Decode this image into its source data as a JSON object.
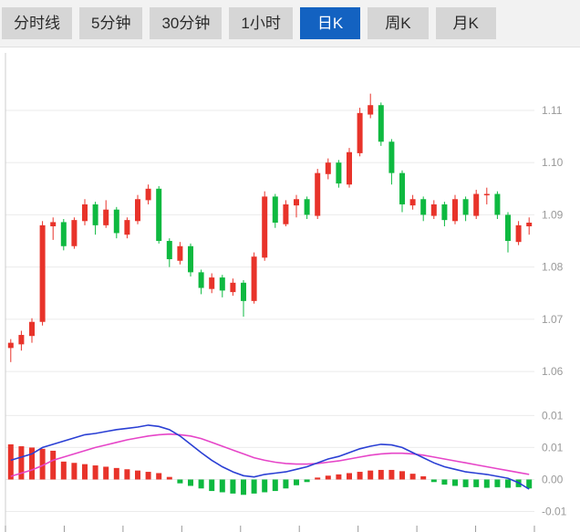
{
  "tabs": [
    {
      "label": "分时线",
      "active": false
    },
    {
      "label": "5分钟",
      "active": false
    },
    {
      "label": "30分钟",
      "active": false
    },
    {
      "label": "1小时",
      "active": false
    },
    {
      "label": "日K",
      "active": true
    },
    {
      "label": "周K",
      "active": false
    },
    {
      "label": "月K",
      "active": false
    }
  ],
  "active_tab_index": 4,
  "chart_data": {
    "type": "candlestick",
    "panes": [
      "price",
      "macd"
    ],
    "legend_position": "none",
    "grid": true,
    "colors": {
      "up": "#e8332a",
      "down": "#0eb940",
      "dif_line": "#2a3fd4",
      "dea_line": "#e645c8",
      "grid": "#ebebeb",
      "axis_line": "#cccccc",
      "axis_text": "#999999",
      "active_tab": "#1362c1"
    },
    "price": {
      "ylim": [
        1.056,
        1.121
      ],
      "yticks": [
        1.06,
        1.07,
        1.08,
        1.09,
        1.1,
        1.11
      ],
      "candles": [
        [
          1.0645,
          1.0662,
          1.0618,
          1.0655
        ],
        [
          1.0652,
          1.0678,
          1.064,
          1.067
        ],
        [
          1.0668,
          1.0702,
          1.0655,
          1.0695
        ],
        [
          1.0695,
          1.0888,
          1.0688,
          1.088
        ],
        [
          1.0878,
          1.0895,
          1.0852,
          1.0886
        ],
        [
          1.0886,
          1.0892,
          1.0832,
          1.084
        ],
        [
          1.084,
          1.0895,
          1.0835,
          1.089
        ],
        [
          1.0888,
          1.093,
          1.088,
          1.092
        ],
        [
          1.092,
          1.0925,
          1.0862,
          1.088
        ],
        [
          1.088,
          1.0928,
          1.0875,
          1.091
        ],
        [
          1.091,
          1.0915,
          1.0855,
          1.0865
        ],
        [
          1.0862,
          1.0895,
          1.0855,
          1.089
        ],
        [
          1.0888,
          1.0938,
          1.0882,
          1.093
        ],
        [
          1.0928,
          1.0958,
          1.092,
          1.095
        ],
        [
          1.095,
          1.0955,
          1.0845,
          1.085
        ],
        [
          1.085,
          1.0855,
          1.08,
          1.0815
        ],
        [
          1.0812,
          1.0848,
          1.0805,
          1.084
        ],
        [
          1.084,
          1.0845,
          1.0782,
          1.079
        ],
        [
          1.079,
          1.0795,
          1.0748,
          1.076
        ],
        [
          1.0758,
          1.0788,
          1.075,
          1.078
        ],
        [
          1.078,
          1.0785,
          1.0742,
          1.0755
        ],
        [
          1.0752,
          1.0778,
          1.0745,
          1.077
        ],
        [
          1.077,
          1.0775,
          1.0705,
          1.0735
        ],
        [
          1.0735,
          1.0828,
          1.073,
          1.082
        ],
        [
          1.0818,
          1.0945,
          1.0812,
          1.0935
        ],
        [
          1.0935,
          1.094,
          1.0875,
          1.0885
        ],
        [
          1.0882,
          1.0928,
          1.0878,
          1.092
        ],
        [
          1.0918,
          1.0938,
          1.0895,
          1.093
        ],
        [
          1.093,
          1.0935,
          1.0892,
          1.09
        ],
        [
          1.0898,
          1.0988,
          1.0892,
          1.098
        ],
        [
          1.0978,
          1.1008,
          1.0968,
          1.1
        ],
        [
          1.1,
          1.1005,
          1.0952,
          1.096
        ],
        [
          1.0958,
          1.1028,
          1.0952,
          1.102
        ],
        [
          1.1018,
          1.1105,
          1.1012,
          1.1095
        ],
        [
          1.1092,
          1.1132,
          1.1085,
          1.111
        ],
        [
          1.111,
          1.1115,
          1.1032,
          1.104
        ],
        [
          1.104,
          1.1045,
          1.0958,
          1.098
        ],
        [
          1.098,
          1.0985,
          1.0905,
          1.092
        ],
        [
          1.0918,
          1.0938,
          1.091,
          1.093
        ],
        [
          1.093,
          1.0935,
          1.0888,
          1.09
        ],
        [
          1.0898,
          1.0928,
          1.0892,
          1.092
        ],
        [
          1.092,
          1.0925,
          1.0878,
          1.089
        ],
        [
          1.0888,
          1.0938,
          1.0882,
          1.093
        ],
        [
          1.093,
          1.0935,
          1.0888,
          1.09
        ],
        [
          1.0898,
          1.0948,
          1.0892,
          1.094
        ],
        [
          1.0938,
          1.0952,
          1.092,
          1.094
        ],
        [
          1.094,
          1.0945,
          1.0892,
          1.09
        ],
        [
          1.09,
          1.0905,
          1.0828,
          1.085
        ],
        [
          1.0848,
          1.0888,
          1.0842,
          1.088
        ],
        [
          1.0878,
          1.0895,
          1.0862,
          1.0885
        ]
      ]
    },
    "macd": {
      "ylim": [
        -0.0075,
        0.0122
      ],
      "yticks": [
        {
          "v": 0.01,
          "label": "0.01"
        },
        {
          "v": 0.005,
          "label": "0.01"
        },
        {
          "v": 0.0,
          "label": "0.00"
        },
        {
          "v": -0.005,
          "label": "-0.01"
        }
      ],
      "hist": [
        0.0055,
        0.0052,
        0.005,
        0.0048,
        0.0045,
        0.0028,
        0.0026,
        0.0024,
        0.0022,
        0.002,
        0.0018,
        0.0016,
        0.0014,
        0.0012,
        0.001,
        0.0004,
        -0.0006,
        -0.001,
        -0.0014,
        -0.0018,
        -0.002,
        -0.0022,
        -0.0024,
        -0.0022,
        -0.002,
        -0.0018,
        -0.0014,
        -0.0009,
        -0.0004,
        0.0003,
        0.0006,
        0.0008,
        0.001,
        0.0012,
        0.0014,
        0.0015,
        0.0015,
        0.0013,
        0.0009,
        0.0005,
        -0.0004,
        -0.0008,
        -0.001,
        -0.0012,
        -0.0012,
        -0.0013,
        -0.0012,
        -0.0013,
        -0.0012,
        -0.0014
      ],
      "dif": [
        0.003,
        0.0035,
        0.004,
        0.005,
        0.0055,
        0.006,
        0.0065,
        0.007,
        0.0072,
        0.0075,
        0.0078,
        0.008,
        0.0082,
        0.0085,
        0.0083,
        0.0078,
        0.0068,
        0.0055,
        0.0042,
        0.003,
        0.002,
        0.0012,
        0.0006,
        0.0004,
        0.0008,
        0.001,
        0.0012,
        0.0016,
        0.002,
        0.0026,
        0.0032,
        0.0036,
        0.0042,
        0.0048,
        0.0052,
        0.0055,
        0.0054,
        0.005,
        0.0042,
        0.0034,
        0.0026,
        0.002,
        0.0016,
        0.0012,
        0.001,
        0.0008,
        0.0005,
        0.0002,
        -0.0005,
        -0.0015
      ],
      "dea": [
        0.0005,
        0.001,
        0.0015,
        0.0022,
        0.003,
        0.0035,
        0.004,
        0.0045,
        0.005,
        0.0054,
        0.0058,
        0.0062,
        0.0065,
        0.0068,
        0.007,
        0.0071,
        0.007,
        0.0068,
        0.0064,
        0.0058,
        0.0052,
        0.0046,
        0.004,
        0.0034,
        0.003,
        0.0027,
        0.0025,
        0.0024,
        0.0024,
        0.0025,
        0.0027,
        0.0029,
        0.0032,
        0.0035,
        0.0038,
        0.004,
        0.0041,
        0.0041,
        0.004,
        0.0038,
        0.0035,
        0.0032,
        0.0029,
        0.0026,
        0.0023,
        0.002,
        0.0017,
        0.0014,
        0.0011,
        0.0008
      ]
    }
  }
}
